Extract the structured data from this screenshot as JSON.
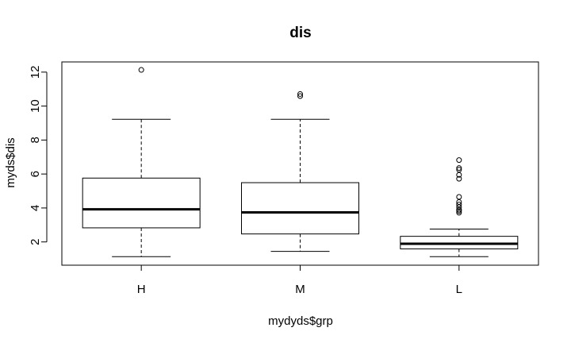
{
  "chart_data": {
    "type": "boxplot",
    "title": "dis",
    "xlabel": "mydyds$grp",
    "ylabel": "myds$dis",
    "ylim": [
      0.63,
      12.6
    ],
    "yticks": [
      2,
      4,
      6,
      8,
      10,
      12
    ],
    "categories": [
      "H",
      "M",
      "L"
    ],
    "boxes": [
      {
        "category": "H",
        "whisker_low": 1.13,
        "q1": 2.83,
        "median": 3.92,
        "q3": 5.76,
        "whisker_high": 9.22,
        "outliers": [
          12.13
        ]
      },
      {
        "category": "M",
        "whisker_low": 1.44,
        "q1": 2.47,
        "median": 3.74,
        "q3": 5.49,
        "whisker_high": 9.22,
        "outliers": [
          10.59,
          10.71
        ]
      },
      {
        "category": "L",
        "whisker_low": 1.13,
        "q1": 1.59,
        "median": 1.89,
        "q3": 2.33,
        "whisker_high": 2.76,
        "outliers": [
          3.72,
          3.82,
          3.9,
          4.05,
          4.2,
          4.35,
          4.65,
          5.72,
          5.95,
          6.25,
          6.35,
          6.82
        ]
      }
    ],
    "grid": false,
    "legend": "none"
  }
}
